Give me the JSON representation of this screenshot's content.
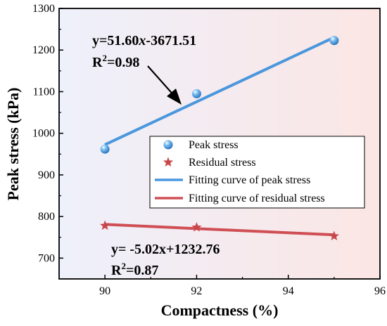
{
  "chart_data": {
    "type": "scatter",
    "title": "",
    "xlabel": "Compactness (%)",
    "ylabel": "Peak stress (kPa)",
    "xlim": [
      89,
      96
    ],
    "ylim": [
      650,
      1300
    ],
    "xticks": [
      90,
      92,
      94,
      96
    ],
    "yticks": [
      700,
      800,
      900,
      1000,
      1100,
      1200,
      1300
    ],
    "grid": false,
    "legend_position": "right-center",
    "background": "gradient light blue to light pink",
    "series": [
      {
        "name": "Peak stress",
        "kind": "points",
        "marker": "sphere",
        "color": "#3a8fd6",
        "x": [
          90,
          92,
          95
        ],
        "y": [
          962,
          1095,
          1223
        ]
      },
      {
        "name": "Residual stress",
        "kind": "points",
        "marker": "star",
        "color": "#c8474b",
        "x": [
          90,
          92,
          95
        ],
        "y": [
          778,
          774,
          753
        ]
      },
      {
        "name": "Fitting curve of peak stress",
        "kind": "line",
        "color": "#4a97dd",
        "x": [
          90,
          95
        ],
        "y": [
          972.49,
          1230.49
        ]
      },
      {
        "name": "Fitting curve of residual stress",
        "kind": "line",
        "color": "#cf4f55",
        "x": [
          90,
          95
        ],
        "y": [
          780.96,
          755.86
        ]
      }
    ],
    "annotations": {
      "peak_equation_prefix": "y=51.60",
      "peak_equation_var": "x",
      "peak_equation_suffix": "-3671.51",
      "peak_r2_prefix": "R",
      "peak_r2_sup": "2",
      "peak_r2_value": "=0.98",
      "residual_equation": "y= -5.02x+1232.76",
      "residual_r2_prefix": "R",
      "residual_r2_sup": "2",
      "residual_r2_value": "=0.87"
    }
  }
}
